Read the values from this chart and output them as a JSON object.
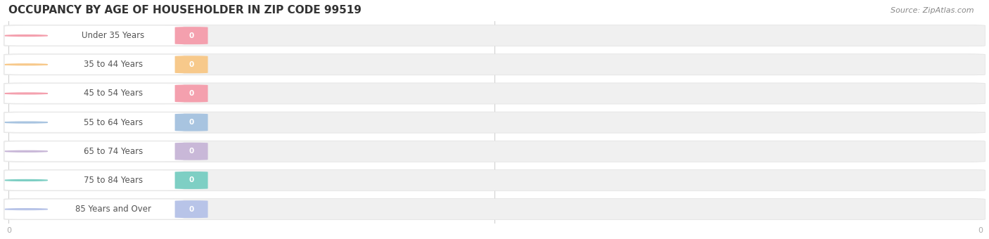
{
  "title": "OCCUPANCY BY AGE OF HOUSEHOLDER IN ZIP CODE 99519",
  "source": "Source: ZipAtlas.com",
  "categories": [
    "Under 35 Years",
    "35 to 44 Years",
    "45 to 54 Years",
    "55 to 64 Years",
    "65 to 74 Years",
    "75 to 84 Years",
    "85 Years and Over"
  ],
  "values": [
    0,
    0,
    0,
    0,
    0,
    0,
    0
  ],
  "bar_colors": [
    "#f4a0ae",
    "#f7c98b",
    "#f4a0ae",
    "#a8c4e0",
    "#c9b8d8",
    "#7ecfc4",
    "#b8c4e8"
  ],
  "background_color": "#ffffff",
  "row_bg_even": "#f7f7f7",
  "row_bg_odd": "#ffffff",
  "full_bar_color": "#eeeeee",
  "title_fontsize": 11,
  "label_fontsize": 8.5,
  "value_fontsize": 7.5
}
